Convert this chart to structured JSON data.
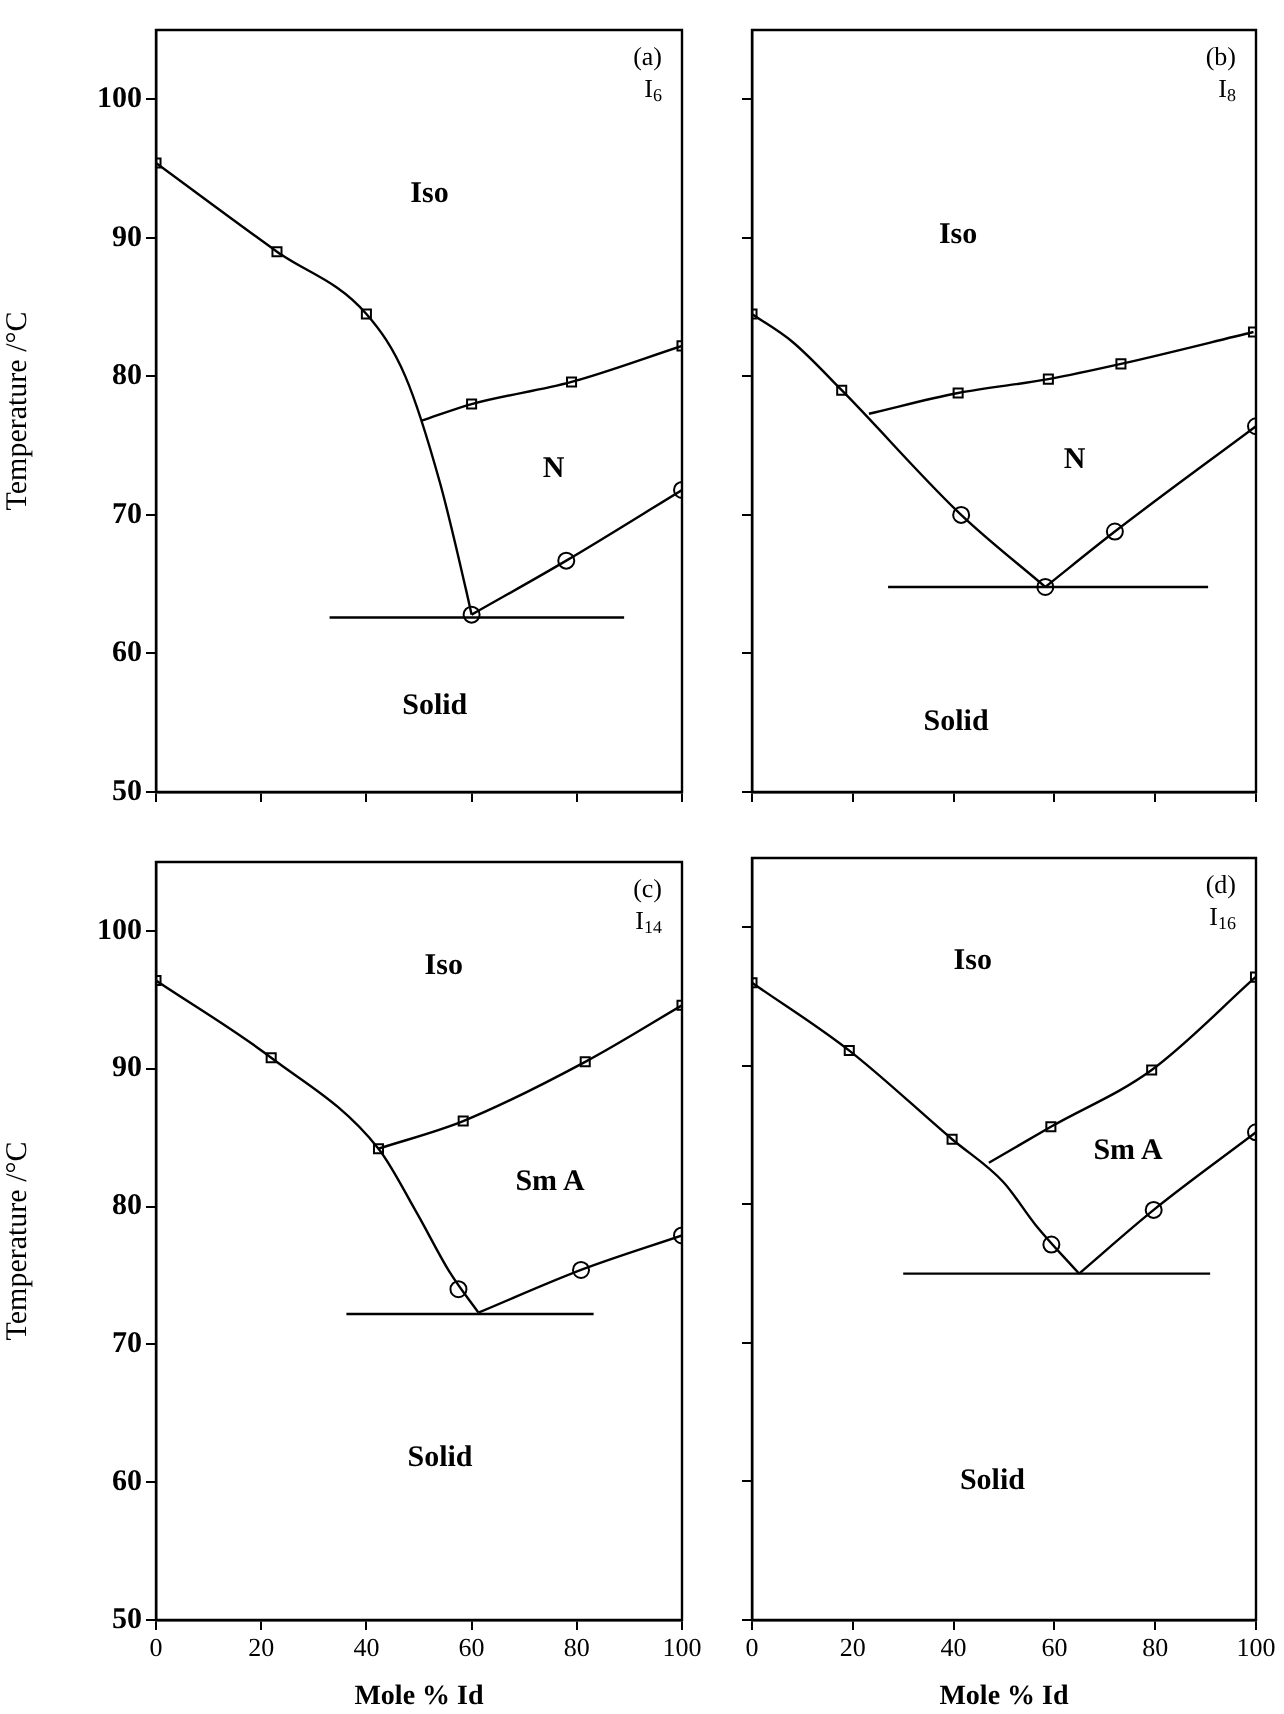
{
  "chart_data": [
    {
      "type": "line",
      "ylabel": "Temperature /°C",
      "xlim": [
        0,
        100
      ],
      "xticks": [
        0,
        20,
        40,
        60,
        80,
        100
      ],
      "ylim": [
        50,
        105
      ],
      "yticks": [
        50,
        60,
        70,
        80,
        90,
        100
      ],
      "grid": false,
      "tick_labels": "y",
      "legend": false,
      "annotations": [
        "(a)",
        "I$_{6}$",
        "Iso",
        "N",
        "Solid"
      ],
      "series": [
        {
          "type": "line",
          "marker": "none",
          "color": "#000000",
          "x": [
            0,
            23,
            40,
            47.4,
            54,
            59,
            60
          ],
          "values": [
            95.4,
            89,
            84.5,
            80,
            72.3,
            64.5,
            62.8
          ]
        },
        {
          "type": "line",
          "marker": "none",
          "color": "#000000",
          "x": [
            50.5,
            60,
            79,
            100
          ],
          "values": [
            76.8,
            78,
            79.6,
            82.2
          ]
        },
        {
          "type": "line",
          "marker": "none",
          "color": "#000000",
          "x": [
            60,
            78,
            100
          ],
          "values": [
            62.8,
            66.7,
            71.8
          ]
        },
        {
          "type": "line",
          "marker": "none",
          "color": "#000000",
          "x": [
            33,
            89
          ],
          "values": [
            62.6,
            62.6
          ]
        },
        {
          "type": "scatter",
          "marker": "square",
          "color": "#000000",
          "x": [
            0,
            23,
            40,
            60,
            79,
            100
          ],
          "values": [
            95.4,
            89,
            84.5,
            78,
            79.6,
            82.2
          ]
        },
        {
          "type": "scatter",
          "marker": "circle",
          "color": "#000000",
          "x": [
            60,
            78,
            100
          ],
          "values": [
            62.8,
            66.7,
            71.8
          ]
        }
      ]
    },
    {
      "type": "line",
      "xlim": [
        0,
        100
      ],
      "xticks": [
        0,
        20,
        40,
        60,
        80,
        100
      ],
      "ylim": [
        50,
        105
      ],
      "yticks": [
        50,
        60,
        70,
        80,
        90,
        100
      ],
      "grid": false,
      "tick_labels": false,
      "legend": false,
      "annotations": [
        "(b)",
        "I$_{8}$",
        "Iso",
        "N",
        "Solid"
      ],
      "series": [
        {
          "type": "line",
          "marker": "none",
          "color": "#000000",
          "x": [
            0,
            8,
            17.8,
            41.5,
            58.2
          ],
          "values": [
            84.5,
            82.5,
            79,
            70,
            64.8
          ]
        },
        {
          "type": "line",
          "marker": "none",
          "color": "#000000",
          "x": [
            23.2,
            40.9,
            58.8,
            73.2,
            99.5
          ],
          "values": [
            77.3,
            78.8,
            79.8,
            80.9,
            83.2
          ]
        },
        {
          "type": "line",
          "marker": "none",
          "color": "#000000",
          "x": [
            58.2,
            72,
            100
          ],
          "values": [
            64.8,
            68.8,
            76.4
          ]
        },
        {
          "type": "line",
          "marker": "none",
          "color": "#000000",
          "x": [
            27,
            90.5
          ],
          "values": [
            64.8,
            64.8
          ]
        },
        {
          "type": "scatter",
          "marker": "square",
          "color": "#000000",
          "x": [
            0,
            17.8,
            40.9,
            58.8,
            73.2,
            99.5
          ],
          "values": [
            84.5,
            79,
            78.8,
            79.8,
            80.9,
            83.2
          ]
        },
        {
          "type": "scatter",
          "marker": "circle",
          "color": "#000000",
          "x": [
            41.5,
            58.2,
            72,
            100
          ],
          "values": [
            70,
            64.8,
            68.8,
            76.4
          ]
        }
      ]
    },
    {
      "type": "line",
      "xlabel": "Mole % Id",
      "ylabel": "Temperature /°C",
      "xlim": [
        0,
        100
      ],
      "xticks": [
        0,
        20,
        40,
        60,
        80,
        100
      ],
      "ylim": [
        50,
        105
      ],
      "yticks": [
        50,
        60,
        70,
        80,
        90,
        100
      ],
      "grid": false,
      "legend": false,
      "annotations": [
        "(c)",
        "I$_{14}$",
        "Iso",
        "Sm A",
        "Solid"
      ],
      "series": [
        {
          "type": "line",
          "marker": "none",
          "color": "#000000",
          "x": [
            0,
            21.9,
            42.3,
            49.5,
            55.9,
            61.3
          ],
          "values": [
            96.4,
            90.8,
            84.2,
            79.6,
            75.2,
            72.3
          ]
        },
        {
          "type": "line",
          "marker": "none",
          "color": "#000000",
          "x": [
            42.3,
            58.4,
            81.6,
            100
          ],
          "values": [
            84.2,
            86.2,
            90.5,
            94.6
          ]
        },
        {
          "type": "line",
          "marker": "none",
          "color": "#000000",
          "x": [
            61.3,
            80.8,
            100
          ],
          "values": [
            72.3,
            75.4,
            77.9
          ]
        },
        {
          "type": "line",
          "marker": "none",
          "color": "#000000",
          "x": [
            36.2,
            83.2
          ],
          "values": [
            72.2,
            72.2
          ]
        },
        {
          "type": "scatter",
          "marker": "square",
          "color": "#000000",
          "x": [
            0,
            21.9,
            42.3,
            58.4,
            81.6,
            100
          ],
          "values": [
            96.4,
            90.8,
            84.2,
            86.2,
            90.5,
            94.6
          ]
        },
        {
          "type": "scatter",
          "marker": "circle",
          "color": "#000000",
          "x": [
            57.5,
            80.8,
            100
          ],
          "values": [
            74,
            75.4,
            77.9
          ]
        }
      ]
    },
    {
      "type": "line",
      "xlabel": "Mole % Id",
      "xlim": [
        0,
        100
      ],
      "xticks": [
        0,
        20,
        40,
        60,
        80,
        100
      ],
      "ylim": [
        50,
        105
      ],
      "yticks": [
        50,
        60,
        70,
        80,
        90,
        100
      ],
      "grid": false,
      "tick_labels": "x",
      "legend": false,
      "annotations": [
        "(d)",
        "I$_{16}$",
        "Iso",
        "Sm A",
        "Solid"
      ],
      "series": [
        {
          "type": "line",
          "marker": "none",
          "color": "#000000",
          "x": [
            0,
            19.3,
            39.7,
            49.9,
            56.3,
            64.9
          ],
          "values": [
            96,
            91.1,
            84.7,
            81.6,
            78.5,
            75
          ]
        },
        {
          "type": "line",
          "marker": "none",
          "color": "#000000",
          "x": [
            47,
            59.3,
            79.3,
            99.9
          ],
          "values": [
            83,
            85.6,
            89.7,
            96.4
          ]
        },
        {
          "type": "line",
          "marker": "none",
          "color": "#000000",
          "x": [
            64.9,
            79.7,
            100
          ],
          "values": [
            75,
            79.6,
            85.2
          ]
        },
        {
          "type": "line",
          "marker": "none",
          "color": "#000000",
          "x": [
            30,
            90.9
          ],
          "values": [
            75,
            75
          ]
        },
        {
          "type": "scatter",
          "marker": "square",
          "color": "#000000",
          "x": [
            0,
            19.3,
            39.7,
            59.3,
            79.3,
            99.9
          ],
          "values": [
            96,
            91.1,
            84.7,
            85.6,
            89.7,
            96.4
          ]
        },
        {
          "type": "scatter",
          "marker": "circle",
          "color": "#000000",
          "x": [
            59.4,
            79.7,
            100
          ],
          "values": [
            77.1,
            79.6,
            85.2
          ]
        }
      ]
    }
  ]
}
